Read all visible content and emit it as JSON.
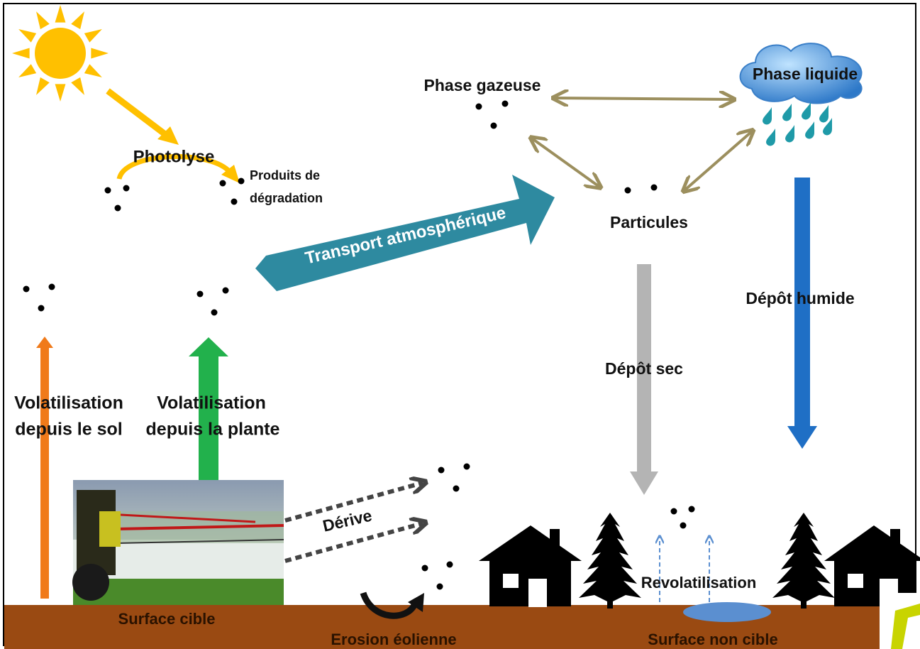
{
  "labels": {
    "photolyse": "Photolyse",
    "produits": [
      "Produits de",
      "dégradation"
    ],
    "phase_gazeuse": "Phase gazeuse",
    "phase_liquide": "Phase liquide",
    "particules": "Particules",
    "transport": "Transport atmosphérique",
    "depot_humide": "Dépôt humide",
    "depot_sec": "Dépôt sec",
    "volat_sol": [
      "Volatilisation",
      "depuis le sol"
    ],
    "volat_plante": [
      "Volatilisation",
      "depuis la plante"
    ],
    "derive": "Dérive",
    "revolatilisation": "Revolatilisation",
    "surface_cible": "Surface cible",
    "erosion": "Erosion éolienne",
    "surface_non_cible": "Surface non cible"
  }
}
